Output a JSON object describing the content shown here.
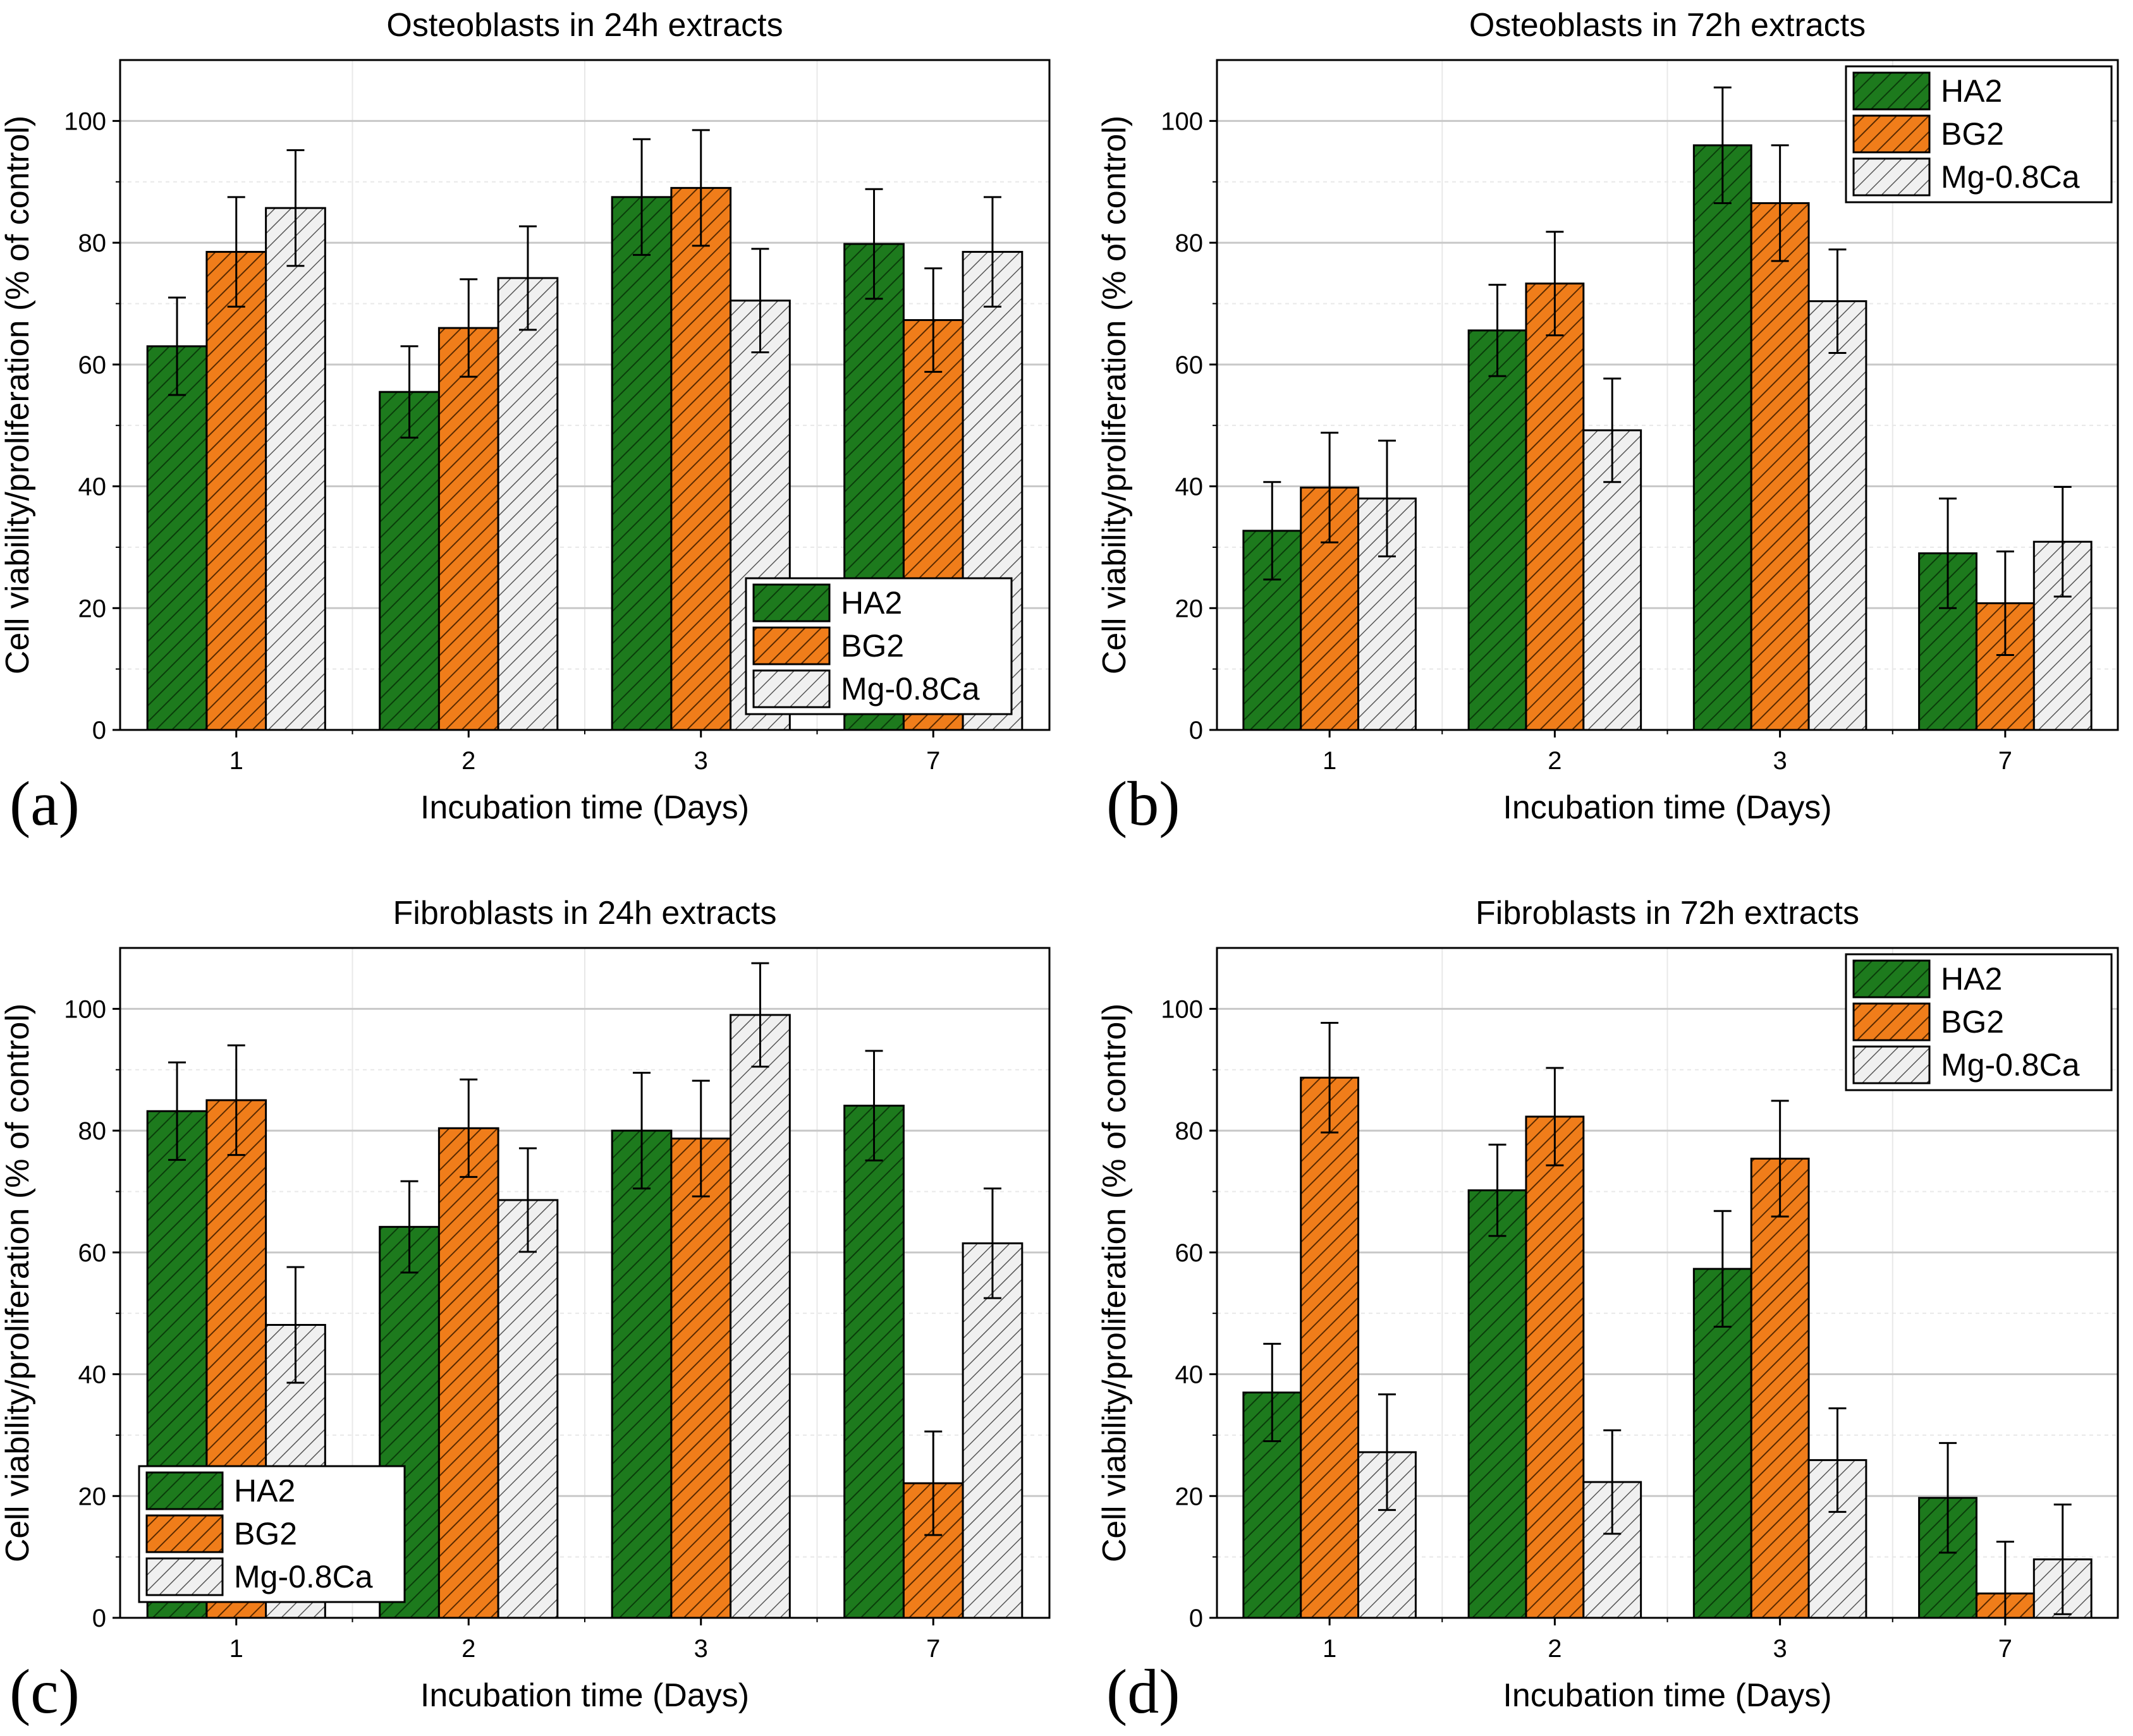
{
  "figure": {
    "panels_note": "2x2 grouped bar charts with error bars",
    "colors": {
      "HA2": "#1d7a1d",
      "BG2": "#f07d1a",
      "Mg-0.8Ca": "#f0f0f0",
      "grid_major": "#c8c8c8",
      "grid_minor": "#e8e8e8",
      "axis": "#000000"
    }
  },
  "chart_data": [
    {
      "type": "bar",
      "panel_label": "(a)",
      "title": "Osteoblasts in 24h extracts",
      "xlabel": "Incubation time (Days)",
      "ylabel": "Cell viability/proliferation (% of control)",
      "categories": [
        "1",
        "2",
        "3",
        "7"
      ],
      "ylim": [
        0,
        110
      ],
      "yticks": [
        0,
        20,
        40,
        60,
        80,
        100
      ],
      "legend_position": "lower-right",
      "series": [
        {
          "name": "HA2",
          "values": [
            63,
            55.5,
            87.5,
            79.8
          ],
          "errors": [
            8,
            7.5,
            9.5,
            9
          ]
        },
        {
          "name": "BG2",
          "values": [
            78.5,
            66,
            89,
            67.3
          ],
          "errors": [
            9,
            8,
            9.5,
            8.5
          ]
        },
        {
          "name": "Mg-0.8Ca",
          "values": [
            85.7,
            74.2,
            70.5,
            78.5
          ],
          "errors": [
            9.5,
            8.5,
            8.5,
            9
          ]
        }
      ]
    },
    {
      "type": "bar",
      "panel_label": "(b)",
      "title": "Osteoblasts in 72h extracts",
      "xlabel": "Incubation time (Days)",
      "ylabel": "Cell viability/proliferation (% of control)",
      "categories": [
        "1",
        "2",
        "3",
        "7"
      ],
      "ylim": [
        0,
        110
      ],
      "yticks": [
        0,
        20,
        40,
        60,
        80,
        100
      ],
      "legend_position": "top-right",
      "series": [
        {
          "name": "HA2",
          "values": [
            32.7,
            65.6,
            96,
            29
          ],
          "errors": [
            8,
            7.5,
            9.5,
            9
          ]
        },
        {
          "name": "BG2",
          "values": [
            39.8,
            73.3,
            86.5,
            20.8
          ],
          "errors": [
            9,
            8.5,
            9.5,
            8.5
          ]
        },
        {
          "name": "Mg-0.8Ca",
          "values": [
            38,
            49.2,
            70.4,
            30.9
          ],
          "errors": [
            9.5,
            8.5,
            8.5,
            9
          ]
        }
      ]
    },
    {
      "type": "bar",
      "panel_label": "(c)",
      "title": "Fibroblasts in 24h extracts",
      "xlabel": "Incubation time (Days)",
      "ylabel": "Cell viability/proliferation (% of control)",
      "categories": [
        "1",
        "2",
        "3",
        "7"
      ],
      "ylim": [
        0,
        110
      ],
      "yticks": [
        0,
        20,
        40,
        60,
        80,
        100
      ],
      "legend_position": "lower-left",
      "series": [
        {
          "name": "HA2",
          "values": [
            83.2,
            64.2,
            80,
            84.1
          ],
          "errors": [
            8,
            7.5,
            9.5,
            9
          ]
        },
        {
          "name": "BG2",
          "values": [
            85,
            80.4,
            78.7,
            22.1
          ],
          "errors": [
            9,
            8,
            9.5,
            8.5
          ]
        },
        {
          "name": "Mg-0.8Ca",
          "values": [
            48.1,
            68.6,
            99,
            61.5
          ],
          "errors": [
            9.5,
            8.5,
            8.5,
            9
          ]
        }
      ]
    },
    {
      "type": "bar",
      "panel_label": "(d)",
      "title": "Fibroblasts in 72h extracts",
      "xlabel": "Incubation time (Days)",
      "ylabel": "Cell viability/proliferation (% of control)",
      "categories": [
        "1",
        "2",
        "3",
        "7"
      ],
      "ylim": [
        0,
        110
      ],
      "yticks": [
        0,
        20,
        40,
        60,
        80,
        100
      ],
      "legend_position": "top-right",
      "series": [
        {
          "name": "HA2",
          "values": [
            37,
            70.2,
            57.3,
            19.7
          ],
          "errors": [
            8,
            7.5,
            9.5,
            9
          ]
        },
        {
          "name": "BG2",
          "values": [
            88.7,
            82.3,
            75.4,
            4
          ],
          "errors": [
            9,
            8,
            9.5,
            8.5
          ]
        },
        {
          "name": "Mg-0.8Ca",
          "values": [
            27.2,
            22.3,
            25.9,
            9.6
          ],
          "errors": [
            9.5,
            8.5,
            8.5,
            9
          ]
        }
      ]
    }
  ]
}
